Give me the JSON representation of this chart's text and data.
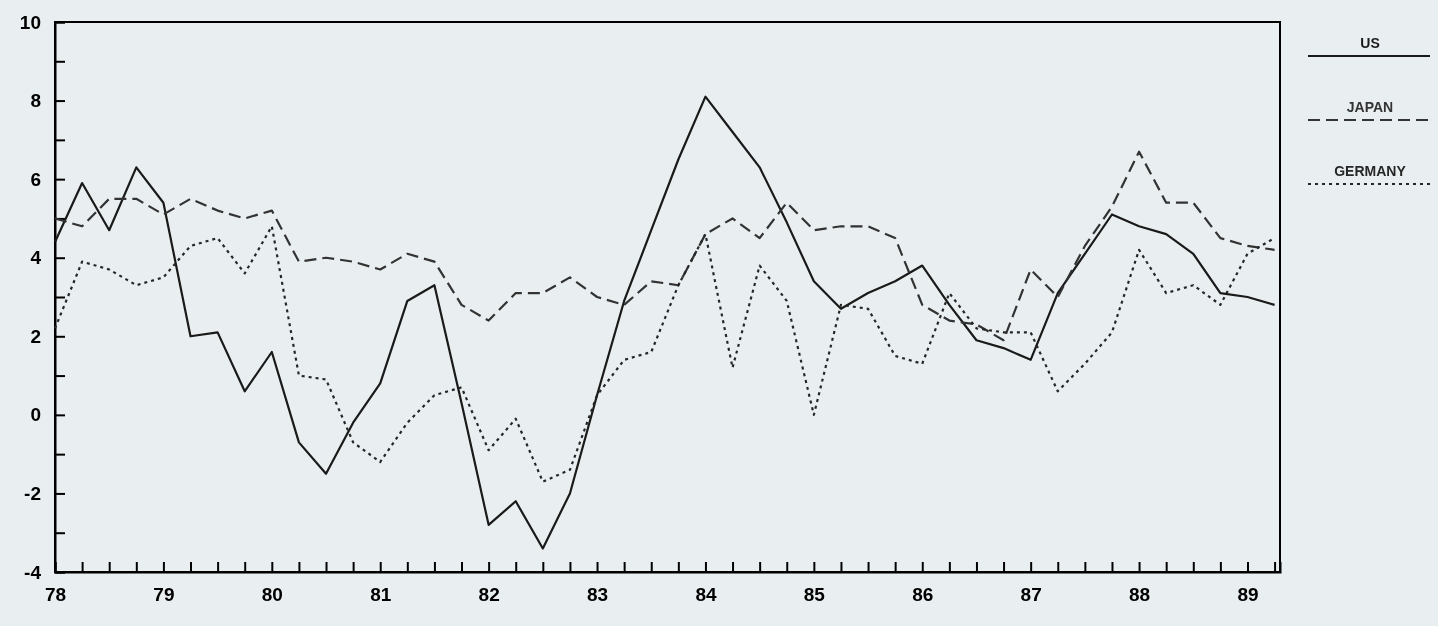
{
  "chart_data": {
    "type": "line",
    "legend": "right",
    "xlim": [
      78,
      89.3
    ],
    "ylim": [
      -4,
      10
    ],
    "xticks": [
      78,
      {
        "value": 78.25,
        "label": null
      },
      {
        "value": 78.5,
        "label": null
      },
      {
        "value": 78.75,
        "label": null
      },
      79,
      {
        "value": 79.25,
        "label": null
      },
      {
        "value": 79.5,
        "label": null
      },
      {
        "value": 79.75,
        "label": null
      },
      80,
      {
        "value": 80.25,
        "label": null
      },
      {
        "value": 80.5,
        "label": null
      },
      {
        "value": 80.75,
        "label": null
      },
      81,
      {
        "value": 81.25,
        "label": null
      },
      {
        "value": 81.5,
        "label": null
      },
      {
        "value": 81.75,
        "label": null
      },
      82,
      {
        "value": 82.25,
        "label": null
      },
      {
        "value": 82.5,
        "label": null
      },
      {
        "value": 82.75,
        "label": null
      },
      83,
      {
        "value": 83.25,
        "label": null
      },
      {
        "value": 83.5,
        "label": null
      },
      {
        "value": 83.75,
        "label": null
      },
      84,
      {
        "value": 84.25,
        "label": null
      },
      {
        "value": 84.5,
        "label": null
      },
      {
        "value": 84.75,
        "label": null
      },
      85,
      {
        "value": 85.25,
        "label": null
      },
      {
        "value": 85.5,
        "label": null
      },
      {
        "value": 85.75,
        "label": null
      },
      86,
      {
        "value": 86.25,
        "label": null
      },
      {
        "value": 86.5,
        "label": null
      },
      {
        "value": 86.75,
        "label": null
      },
      87,
      {
        "value": 87.25,
        "label": null
      },
      {
        "value": 87.5,
        "label": null
      },
      {
        "value": 87.75,
        "label": null
      },
      88,
      {
        "value": 88.25,
        "label": null
      },
      {
        "value": 88.5,
        "label": null
      },
      {
        "value": 88.75,
        "label": null
      },
      89,
      {
        "value": 89.25,
        "label": null
      }
    ],
    "yticks": [
      -4,
      {
        "value": -3,
        "label": null
      },
      -2,
      {
        "value": -1,
        "label": null
      },
      0,
      {
        "value": 1,
        "label": null
      },
      2,
      {
        "value": 3,
        "label": null
      },
      4,
      {
        "value": 5,
        "label": null
      },
      6,
      {
        "value": 7,
        "label": null
      },
      8,
      {
        "value": 9,
        "label": null
      },
      10
    ],
    "x": [
      78,
      78.25,
      78.5,
      78.75,
      79,
      79.25,
      79.5,
      79.75,
      80,
      80.25,
      80.5,
      80.75,
      81,
      81.25,
      81.5,
      81.75,
      82,
      82.25,
      82.5,
      82.75,
      83,
      83.25,
      83.5,
      83.75,
      84,
      84.25,
      84.5,
      84.75,
      85,
      85.25,
      85.5,
      85.75,
      86,
      86.25,
      86.5,
      86.75,
      87,
      87.25,
      87.5,
      87.75,
      88,
      88.25,
      88.5,
      88.75,
      89,
      89.25
    ],
    "series": [
      {
        "name": "US",
        "color": "#1a1a1a",
        "line_style": "solid",
        "values": [
          4.4,
          5.9,
          4.7,
          6.3,
          5.4,
          2.0,
          2.1,
          0.6,
          1.6,
          -0.7,
          -1.5,
          -0.2,
          0.8,
          2.9,
          3.3,
          0.3,
          -2.8,
          -2.2,
          -3.4,
          -2.0,
          0.5,
          2.9,
          4.7,
          6.5,
          8.1,
          7.2,
          6.3,
          4.9,
          3.4,
          2.7,
          3.1,
          3.4,
          3.8,
          2.8,
          1.9,
          1.7,
          1.4,
          3.1,
          4.1,
          5.1,
          4.8,
          4.6,
          4.1,
          3.1,
          3.0,
          2.8
        ]
      },
      {
        "name": "JAPAN",
        "color": "#333333",
        "line_style": "dashed",
        "values": [
          5.0,
          4.8,
          5.5,
          5.5,
          5.1,
          5.5,
          5.2,
          5.0,
          5.2,
          3.9,
          4.0,
          3.9,
          3.7,
          4.1,
          3.9,
          2.8,
          2.4,
          3.1,
          3.1,
          3.5,
          3.0,
          2.8,
          3.4,
          3.3,
          4.6,
          5.0,
          4.5,
          5.4,
          4.7,
          4.8,
          4.8,
          4.5,
          2.8,
          2.4,
          2.3,
          1.9,
          3.7,
          3.0,
          4.3,
          5.3,
          6.7,
          5.4,
          5.4,
          4.5,
          4.3,
          4.2
        ]
      },
      {
        "name": "GERMANY",
        "color": "#262626",
        "line_style": "dotted",
        "values": [
          2.2,
          3.9,
          3.7,
          3.3,
          3.5,
          4.3,
          4.5,
          3.6,
          4.8,
          1.0,
          0.9,
          -0.7,
          -1.2,
          -0.2,
          0.5,
          0.7,
          -0.9,
          -0.1,
          -1.7,
          -1.4,
          0.5,
          1.4,
          1.6,
          3.3,
          4.6,
          1.2,
          3.8,
          2.9,
          0.0,
          2.8,
          2.7,
          1.5,
          1.3,
          3.1,
          2.2,
          2.1,
          2.1,
          0.6,
          1.3,
          2.1,
          4.2,
          3.1,
          3.3,
          2.8,
          4.1,
          4.5
        ]
      }
    ]
  }
}
